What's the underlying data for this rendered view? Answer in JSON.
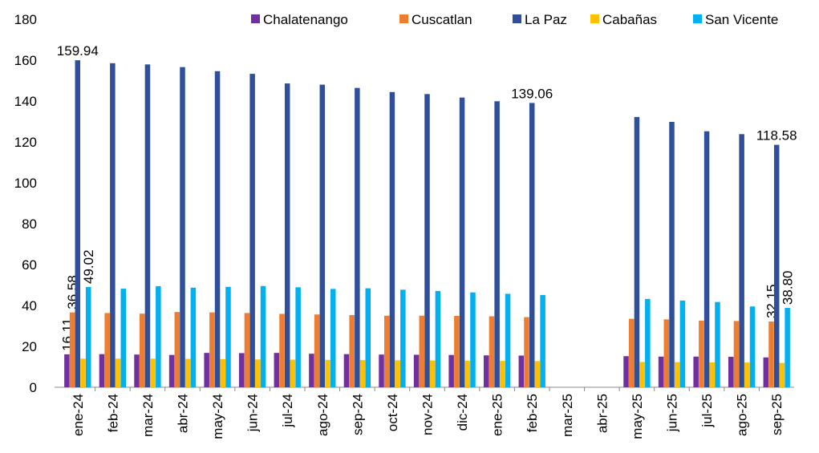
{
  "chart_data": {
    "type": "bar",
    "categories": [
      "ene-24",
      "feb-24",
      "mar-24",
      "abr-24",
      "may-24",
      "jun-24",
      "jul-24",
      "ago-24",
      "sep-24",
      "oct-24",
      "nov-24",
      "dic-24",
      "ene-25",
      "feb-25",
      "mar-25",
      "abr-25",
      "may-25",
      "jun-25",
      "jul-25",
      "ago-25",
      "sep-25"
    ],
    "series": [
      {
        "name": "Chalatenango",
        "color": "#7030a0",
        "values": [
          16.11,
          16.2,
          16.0,
          15.8,
          16.8,
          16.7,
          16.8,
          16.4,
          16.2,
          16.0,
          15.9,
          15.8,
          15.6,
          15.5,
          null,
          null,
          15.2,
          15.0,
          15.0,
          14.9,
          14.6
        ],
        "value_labels": [
          "16.11",
          null,
          null,
          null,
          null,
          null,
          null,
          null,
          null,
          null,
          null,
          null,
          null,
          null,
          null,
          null,
          null,
          null,
          null,
          null,
          null
        ]
      },
      {
        "name": "Cuscatlan",
        "color": "#ed7d31",
        "values": [
          36.58,
          36.3,
          36.0,
          36.8,
          36.6,
          36.3,
          35.9,
          35.6,
          35.3,
          35.0,
          35.0,
          34.9,
          34.7,
          34.3,
          null,
          null,
          33.5,
          33.2,
          32.6,
          32.4,
          32.15
        ],
        "value_labels": [
          "36.58",
          null,
          null,
          null,
          null,
          null,
          null,
          null,
          null,
          null,
          null,
          null,
          null,
          null,
          null,
          null,
          null,
          null,
          null,
          null,
          "32.15"
        ]
      },
      {
        "name": "La Paz",
        "color": "#2f4f9a",
        "values": [
          159.94,
          158.5,
          157.9,
          156.6,
          154.6,
          153.3,
          148.6,
          148.0,
          146.4,
          144.4,
          143.4,
          141.7,
          139.9,
          139.06,
          null,
          null,
          132.2,
          129.8,
          125.2,
          123.8,
          118.58
        ],
        "value_labels": [
          "159.94",
          null,
          null,
          null,
          null,
          null,
          null,
          null,
          null,
          null,
          null,
          null,
          null,
          "139.06",
          null,
          null,
          null,
          null,
          null,
          null,
          "118.58"
        ]
      },
      {
        "name": "Cabañas",
        "color": "#ffc000",
        "values": [
          14.0,
          14.0,
          14.0,
          13.9,
          13.8,
          13.6,
          13.5,
          13.4,
          13.3,
          13.2,
          13.1,
          13.0,
          12.9,
          12.8,
          null,
          null,
          12.4,
          12.3,
          12.2,
          12.1,
          11.9
        ]
      },
      {
        "name": "San Vicente",
        "color": "#00b0f0",
        "values": [
          49.02,
          48.2,
          49.4,
          48.7,
          49.1,
          49.5,
          48.9,
          48.1,
          48.4,
          47.7,
          47.1,
          46.4,
          45.7,
          45.1,
          null,
          null,
          43.2,
          42.4,
          41.7,
          39.5,
          38.8
        ],
        "value_labels": [
          "49.02",
          null,
          null,
          null,
          null,
          null,
          null,
          null,
          null,
          null,
          null,
          null,
          null,
          null,
          null,
          null,
          null,
          null,
          null,
          null,
          "38.80"
        ]
      }
    ],
    "ylim": [
      0,
      180
    ],
    "yticks": [
      0,
      20,
      40,
      60,
      80,
      100,
      120,
      140,
      160,
      180
    ],
    "grid": false,
    "legend": "top"
  }
}
